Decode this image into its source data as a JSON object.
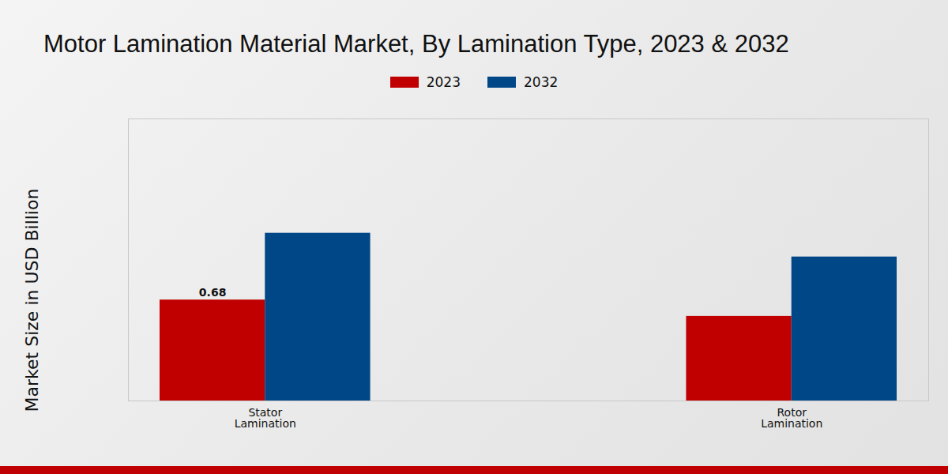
{
  "chart_data": {
    "type": "bar",
    "title": "Motor Lamination Material Market, By Lamination Type, 2023 & 2032",
    "y_label": "Market Size in USD Billion",
    "categories": [
      "Stator Lamination",
      "Rotor Lamination"
    ],
    "series": [
      {
        "name": "2023",
        "color": "#c00000",
        "values": [
          0.68,
          0.57
        ],
        "value_labels": [
          "0.68",
          null
        ]
      },
      {
        "name": "2032",
        "color": "#004788",
        "values": [
          1.13,
          0.97
        ]
      }
    ],
    "ylim": [
      0,
      1.9
    ],
    "yticks": [
      0
    ],
    "grid": false,
    "legend": "top",
    "tick_labels": "x"
  }
}
